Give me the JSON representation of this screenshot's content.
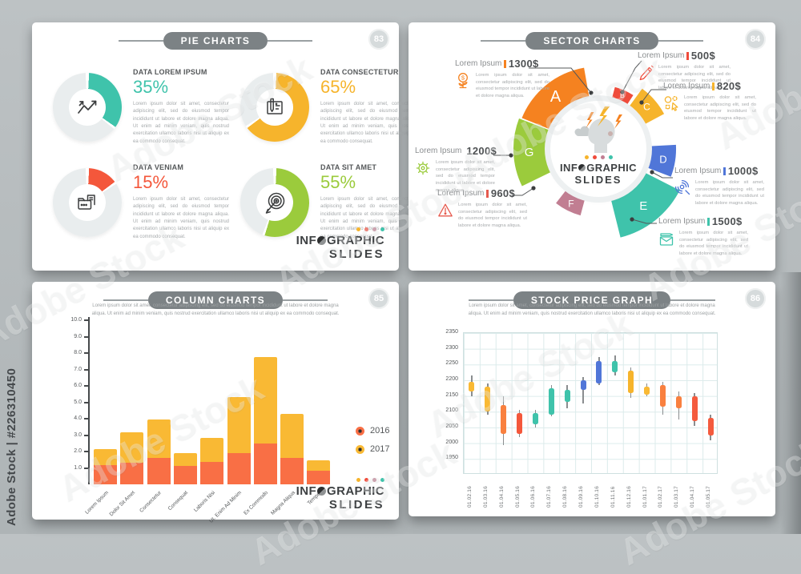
{
  "watermark": {
    "id_text": "Adobe Stock | #226310450",
    "tile_text": "Adobe Stock"
  },
  "logo": {
    "pre": "INF",
    "post": "GRAPHIC",
    "line2": "SLIDES",
    "dot_colors": [
      "#f6b42c",
      "#ef4b3b",
      "#c17e92",
      "#3fc3ab"
    ]
  },
  "lorem_full": "Lorem ipsum dolor sit amet, consectetur adipiscing elit, sed do eiusmod tempor incididunt ut labore et dolore magna aliqua. Ut enim ad minim veniam, quis nostrud exercitation ullamco laboris nisi ut aliquip ex ea commodo consequat.",
  "lorem_short": "Lorem ipsum dolor sit amet, consectetur adipiscing elit, sed do eiusmod tempor incididunt ut labore et dolore magna aliqua.",
  "slides": {
    "pie": {
      "number": "83",
      "title": "PIE CHARTS"
    },
    "sector": {
      "number": "84",
      "title": "SECTOR CHARTS"
    },
    "column": {
      "number": "85",
      "title": "COLUMN CHARTS"
    },
    "stock": {
      "number": "86",
      "title": "STOCK PRICE GRAPH"
    }
  },
  "chart_data": [
    {
      "type": "pie",
      "title": "PIE CHARTS",
      "note": "four independent single-value donut charts, remainder of ring is light gray",
      "remainder_color": "#e9edee",
      "slices": [
        {
          "label": "DATA LOREM IPSUM",
          "percent": 35,
          "percent_label": "35%",
          "color": "#3fc3ab",
          "icon": "trend-chart-icon"
        },
        {
          "label": "DATA CONSECTETUR",
          "percent": 65,
          "percent_label": "65%",
          "color": "#f6b42c",
          "icon": "blueprint-icon"
        },
        {
          "label": "DATA VENIAM",
          "percent": 15,
          "percent_label": "15%",
          "color": "#f4573b",
          "icon": "folder-document-icon"
        },
        {
          "label": "DATA SIT AMET",
          "percent": 55,
          "percent_label": "55%",
          "color": "#9bcb3c",
          "icon": "target-arrow-icon"
        }
      ]
    },
    {
      "type": "pie",
      "variant": "sector-diagram",
      "title": "SECTOR CHARTS",
      "sectors": [
        {
          "letter": "A",
          "name": "Lorem Ipsum",
          "value": "1300$",
          "color": "#f58220",
          "accent": "#f58220",
          "icon": "money-plant-icon"
        },
        {
          "letter": "B",
          "name": "Lorem Ipsum",
          "value": "500$",
          "color": "#ef4b3b",
          "accent": "#ef4b3b",
          "icon": "pencil-icon"
        },
        {
          "letter": "C",
          "name": "Lorem Ipsum",
          "value": "820$",
          "color": "#f6b42c",
          "accent": "#f6b42c",
          "icon": "geometric-shapes-icon"
        },
        {
          "letter": "D",
          "name": "Lorem Ipsum",
          "value": "1000$",
          "color": "#5076d8",
          "accent": "#5076d8",
          "icon": "fingerprint-icon"
        },
        {
          "letter": "E",
          "name": "Lorem Ipsum",
          "value": "1500$",
          "color": "#3fc3ab",
          "accent": "#3fc3ab",
          "icon": "envelope-pen-icon"
        },
        {
          "letter": "F",
          "name": "Lorem Ipsum",
          "value": "960$",
          "color": "#c17e92",
          "accent": "#e65a4e",
          "icon": "warning-triangle-icon"
        },
        {
          "letter": "G",
          "name": "Lorem Ipsum",
          "value": "1200$",
          "color": "#9bcb3c",
          "accent": "#9bcb3c",
          "icon": "gear-icon"
        }
      ]
    },
    {
      "type": "bar",
      "stacked": true,
      "title": "COLUMN CHARTS",
      "categories": [
        "Lorem Ipsum",
        "Dolor Sit Amet",
        "Consectetur",
        "Consequat",
        "Laboris Nisi",
        "Ut. Enim Ad Minim",
        "Ex Commodo",
        "Magna Aliqua",
        "Tempor"
      ],
      "series": [
        {
          "name": "2016",
          "color": "#f96f45",
          "values": [
            1.15,
            1.3,
            1.6,
            1.1,
            1.35,
            1.9,
            2.5,
            1.6,
            0.85
          ]
        },
        {
          "name": "2017",
          "color": "#f9b934",
          "values": [
            1.0,
            1.85,
            2.35,
            0.8,
            1.5,
            3.4,
            5.25,
            2.7,
            0.6
          ]
        }
      ],
      "ylim": [
        0,
        10
      ],
      "yticks": [
        1.0,
        2.0,
        3.0,
        4.0,
        5.0,
        6.0,
        7.0,
        8.0,
        9.0,
        10.0
      ],
      "legend_position": "right",
      "grid": false
    },
    {
      "type": "candlestick",
      "title": "STOCK PRICE GRAPH",
      "ylim": [
        1900,
        2350
      ],
      "yticks": [
        2350,
        2300,
        2250,
        2200,
        2150,
        2100,
        2050,
        2000,
        1950
      ],
      "grid": true,
      "x": [
        "01.02.16",
        "01.03.16",
        "01.04.16",
        "01.05.16",
        "01.06.16",
        "01.07.16",
        "01.08.16",
        "01.09.16",
        "01.10.16",
        "01.11.16",
        "01.12.16",
        "01.01.17",
        "01.02.17",
        "01.03.17",
        "01.04.17",
        "01.05.17"
      ],
      "candles": [
        {
          "x": "01.02.16",
          "low": 2150,
          "open": 2165,
          "close": 2195,
          "high": 2215,
          "color": "#f9b934"
        },
        {
          "x": "01.03.16",
          "low": 2090,
          "open": 2100,
          "close": 2180,
          "high": 2190,
          "color": "#f9b934"
        },
        {
          "x": "01.04.16",
          "low": 1995,
          "open": 2030,
          "close": 2120,
          "high": 2150,
          "color": "#f9803f"
        },
        {
          "x": "01.05.16",
          "low": 2020,
          "open": 2030,
          "close": 2095,
          "high": 2105,
          "color": "#f4573b"
        },
        {
          "x": "01.06.16",
          "low": 2050,
          "open": 2060,
          "close": 2095,
          "high": 2105,
          "color": "#3fc3ab"
        },
        {
          "x": "01.07.16",
          "low": 2085,
          "open": 2090,
          "close": 2175,
          "high": 2185,
          "color": "#3fc3ab"
        },
        {
          "x": "01.08.16",
          "low": 2110,
          "open": 2130,
          "close": 2170,
          "high": 2185,
          "color": "#3fc3ab"
        },
        {
          "x": "01.09.16",
          "low": 2125,
          "open": 2170,
          "close": 2200,
          "high": 2210,
          "color": "#5076d8"
        },
        {
          "x": "01.10.16",
          "low": 2185,
          "open": 2190,
          "close": 2260,
          "high": 2275,
          "color": "#5076d8"
        },
        {
          "x": "01.11.16",
          "low": 2215,
          "open": 2225,
          "close": 2260,
          "high": 2280,
          "color": "#3fc3ab"
        },
        {
          "x": "01.12.16",
          "low": 2145,
          "open": 2160,
          "close": 2230,
          "high": 2240,
          "color": "#f6b42c"
        },
        {
          "x": "01.01.17",
          "low": 2150,
          "open": 2155,
          "close": 2180,
          "high": 2190,
          "color": "#f9b934"
        },
        {
          "x": "01.02.17",
          "low": 2090,
          "open": 2115,
          "close": 2185,
          "high": 2195,
          "color": "#f9803f"
        },
        {
          "x": "01.03.17",
          "low": 2075,
          "open": 2110,
          "close": 2150,
          "high": 2165,
          "color": "#f9803f"
        },
        {
          "x": "01.04.17",
          "low": 2055,
          "open": 2070,
          "close": 2150,
          "high": 2160,
          "color": "#f45b3e"
        },
        {
          "x": "01.05.17",
          "low": 2010,
          "open": 2025,
          "close": 2080,
          "high": 2090,
          "color": "#f45b3e"
        }
      ]
    }
  ]
}
